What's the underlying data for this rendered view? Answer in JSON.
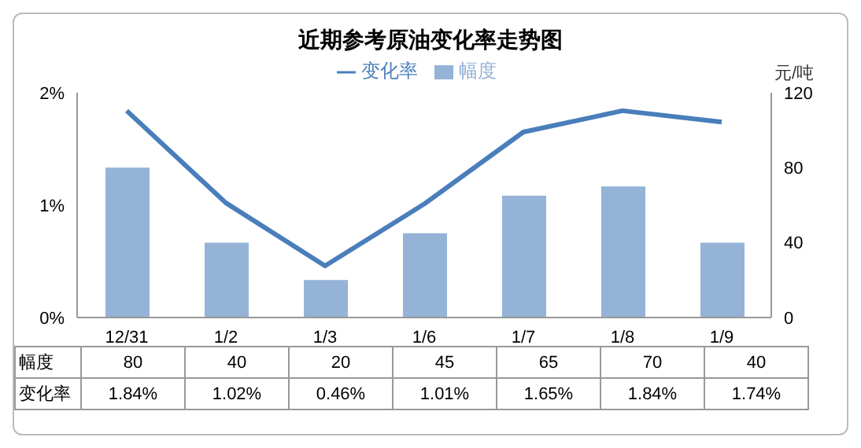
{
  "chart_data": {
    "type": "bar",
    "title": "近期参考原油变化率走势图",
    "categories": [
      "12/31",
      "1/2",
      "1/3",
      "1/6",
      "1/7",
      "1/8",
      "1/9"
    ],
    "series": [
      {
        "name": "幅度",
        "axis": "y2",
        "color": "#95b3d7",
        "values": [
          80,
          40,
          20,
          45,
          65,
          70,
          40
        ],
        "value_labels": [
          "80",
          "40",
          "20",
          "45",
          "65",
          "70",
          "40"
        ]
      },
      {
        "name": "变化率",
        "type": "line",
        "color": "#4a7ebb",
        "values": [
          1.84,
          1.02,
          0.46,
          1.01,
          1.65,
          1.84,
          1.74
        ],
        "value_labels": [
          "1.84%",
          "1.02%",
          "0.46%",
          "1.01%",
          "1.65%",
          "1.84%",
          "1.74%"
        ]
      }
    ],
    "ylim": [
      0,
      2
    ],
    "yticks": [
      {
        "value": 0,
        "label": "0%"
      },
      {
        "value": 1,
        "label": "1%"
      },
      {
        "value": 2,
        "label": "2%"
      }
    ],
    "y2label": "元/吨",
    "y2lim": [
      0,
      120
    ],
    "y2ticks": [
      0,
      40,
      80,
      120
    ],
    "legend": "top",
    "grid": false,
    "marker": "none",
    "line_style": "solid"
  }
}
